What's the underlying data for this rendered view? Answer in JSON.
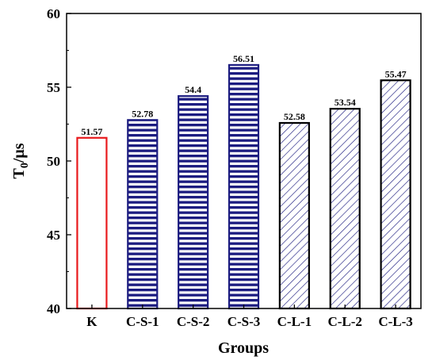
{
  "chart_data": {
    "type": "bar",
    "categories": [
      "K",
      "C-S-1",
      "C-S-2",
      "C-S-3",
      "C-L-1",
      "C-L-2",
      "C-L-3"
    ],
    "values": [
      51.57,
      52.78,
      54.4,
      56.51,
      52.58,
      53.54,
      55.47
    ],
    "value_labels": [
      "51.57",
      "52.78",
      "54.4",
      "56.51",
      "52.58",
      "53.54",
      "55.47"
    ],
    "fill_patterns": [
      "none",
      "horizontal",
      "horizontal",
      "horizontal",
      "diagonal",
      "diagonal",
      "diagonal"
    ],
    "bar_colors": [
      "#e8191c",
      "#1c1c80",
      "#1c1c80",
      "#1c1c80",
      "#000000",
      "#000000",
      "#000000"
    ],
    "pattern_colors": [
      "#e8191c",
      "#1c1c80",
      "#1c1c80",
      "#1c1c80",
      "#1c1c80",
      "#1c1c80",
      "#1c1c80"
    ],
    "xlabel": "Groups",
    "ylabel_main": "T",
    "ylabel_sub": "0",
    "ylabel_unit": "/μs",
    "ylim": [
      40,
      60
    ],
    "yticks": [
      40,
      45,
      50,
      55,
      60
    ],
    "grid": false,
    "legend": "none"
  }
}
